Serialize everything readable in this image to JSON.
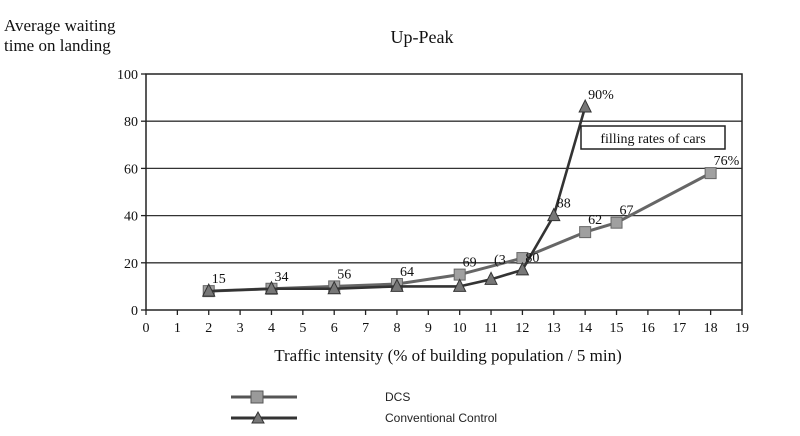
{
  "chart_data": {
    "type": "line",
    "title": "Up-Peak",
    "ylabel_lines": [
      "Average waiting",
      "time on landing"
    ],
    "xlabel": "Traffic intensity (% of building population / 5 min)",
    "xlim": [
      0,
      19
    ],
    "ylim": [
      0,
      100
    ],
    "x_ticks": [
      "0",
      "1",
      "2",
      "3",
      "4",
      "5",
      "6",
      "7",
      "8",
      "9",
      "10",
      "11",
      "12",
      "13",
      "14",
      "15",
      "16",
      "17",
      "18",
      "19"
    ],
    "y_ticks": [
      "0",
      "20",
      "40",
      "60",
      "80",
      "100"
    ],
    "grid": "horizontal",
    "annotation": "filling rates of cars",
    "series": [
      {
        "name": "DCS",
        "color": "#666666",
        "marker": "square",
        "x": [
          2,
          4,
          6,
          8,
          10,
          12,
          14,
          15,
          18
        ],
        "y": [
          8,
          9,
          10,
          11,
          15,
          22,
          33,
          37,
          58
        ]
      },
      {
        "name": "Conventional  Control",
        "color": "#333333",
        "marker": "triangle",
        "x": [
          2,
          4,
          6,
          8,
          10,
          11,
          12,
          13,
          14
        ],
        "y": [
          8,
          9,
          9,
          10,
          10,
          13,
          17,
          40,
          86
        ]
      }
    ],
    "point_labels": [
      {
        "text": "15",
        "x": 2,
        "y": 8
      },
      {
        "text": "34",
        "x": 4,
        "y": 9
      },
      {
        "text": "56",
        "x": 6,
        "y": 10
      },
      {
        "text": "64",
        "x": 8,
        "y": 11
      },
      {
        "text": "69",
        "x": 10,
        "y": 15
      },
      {
        "text": "(3",
        "x": 11,
        "y": 16
      },
      {
        "text": "80",
        "x": 12,
        "y": 17
      },
      {
        "text": "88",
        "x": 13,
        "y": 40
      },
      {
        "text": "62",
        "x": 14,
        "y": 33
      },
      {
        "text": "67",
        "x": 15,
        "y": 37
      },
      {
        "text": "90%",
        "x": 14,
        "y": 86
      },
      {
        "text": "76%",
        "x": 18,
        "y": 58
      }
    ],
    "legend": [
      {
        "label": "DCS",
        "marker": "square"
      },
      {
        "label": "Conventional  Control",
        "marker": "triangle"
      }
    ]
  }
}
